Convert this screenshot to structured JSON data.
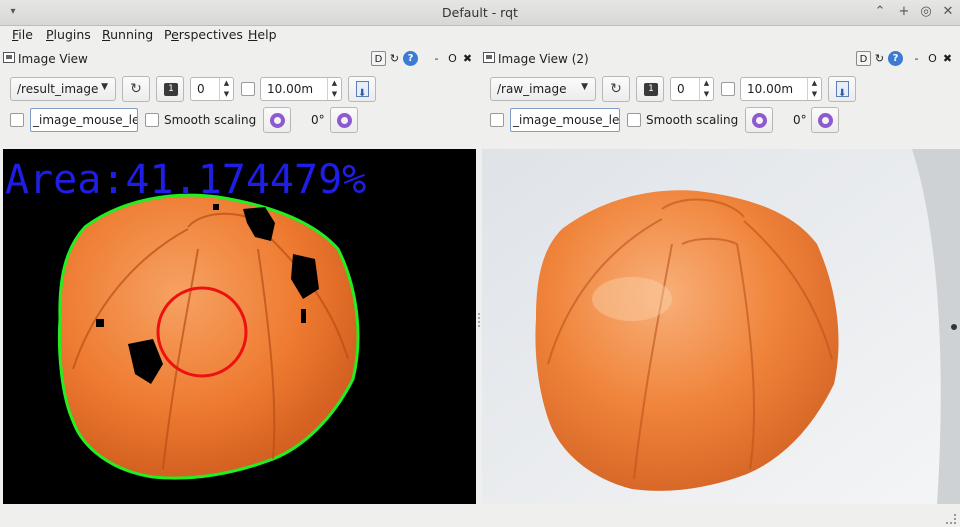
{
  "window": {
    "title": "Default - rqt",
    "menu_glyph": "▾",
    "controls": {
      "shade": "⌃",
      "maximize": "+",
      "restore": "◎",
      "close": "✕"
    }
  },
  "menubar": [
    {
      "pre": "",
      "u": "F",
      "post": "ile"
    },
    {
      "pre": "",
      "u": "P",
      "post": "lugins"
    },
    {
      "pre": "",
      "u": "R",
      "post": "unning"
    },
    {
      "pre": "P",
      "u": "e",
      "post": "rspectives"
    },
    {
      "pre": "",
      "u": "H",
      "post": "elp"
    }
  ],
  "dock_buttons": {
    "d": "D",
    "reload": "↻",
    "help": "?",
    "minimize": "-",
    "float": "O",
    "close": "✖"
  },
  "panels": [
    {
      "title": "Image View",
      "topic": "/result_image",
      "number_value": "0",
      "max_value": "10.00m",
      "mouse_topic": "_image_mouse_left",
      "smooth_label": "Smooth scaling",
      "rotation": "0°"
    },
    {
      "title": "Image View (2)",
      "topic": "/raw_image",
      "number_value": "0",
      "max_value": "10.00m",
      "mouse_topic": "_image_mouse_left",
      "smooth_label": "Smooth scaling",
      "rotation": "0°"
    }
  ],
  "result_overlay": {
    "text": "Area:41.174479%",
    "text_color": "#1e1ee6",
    "contour_color": "#22ee22",
    "circle_color": "#ee1111"
  },
  "colors": {
    "ball": "#ef7a2c",
    "ball_dark": "#c8571a",
    "background_raw": "#e9ecef"
  }
}
